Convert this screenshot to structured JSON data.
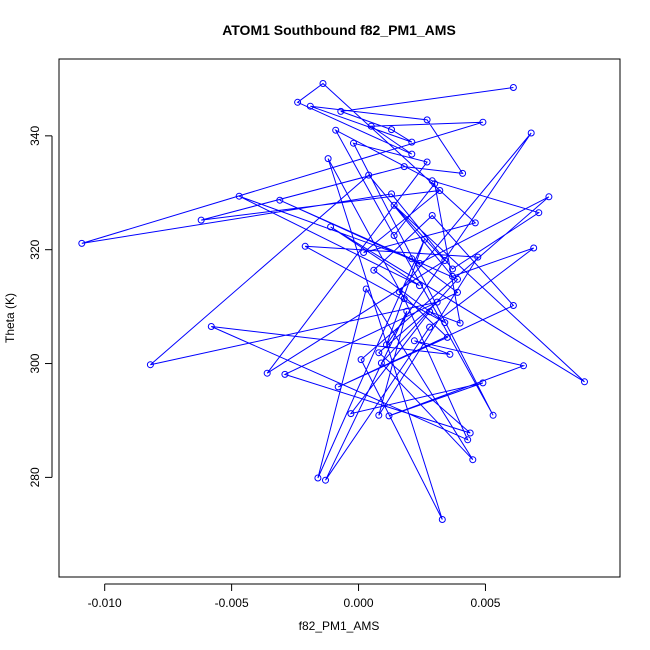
{
  "chart_data": {
    "type": "scatter",
    "title": "ATOM1 Southbound f82_PM1_AMS",
    "xlabel": "f82_PM1_AMS",
    "ylabel": "Theta (K)",
    "xlim": [
      -0.0118,
      0.0103
    ],
    "ylim": [
      262.5,
      353.5
    ],
    "xticks": [
      -0.01,
      -0.005,
      0.0,
      0.005
    ],
    "xtick_labels": [
      "-0.010",
      "-0.005",
      "0.000",
      "0.005"
    ],
    "yticks": [
      280,
      300,
      320,
      340
    ],
    "ytick_labels": [
      "280",
      "300",
      "320",
      "340"
    ],
    "grid": false,
    "legend": "none",
    "color": "#0000ff",
    "connected": true,
    "x": [
      0.0061,
      -0.0007,
      0.0013,
      0.0021,
      -0.0019,
      0.0027,
      0.0041,
      0.0018,
      -0.0062,
      0.0032,
      0.0002,
      0.0046,
      -0.0014,
      -0.0024,
      0.0021,
      0.0005,
      0.0049,
      -0.0109,
      0.0013,
      0.0037,
      0.0071,
      0.0029,
      -0.0009,
      0.0053,
      -0.0002,
      0.0027,
      -0.0036,
      0.0034,
      0.0014,
      0.0089,
      -0.0011,
      0.0024,
      -0.0047,
      0.0021,
      0.0039,
      -0.0029,
      0.0044,
      0.0008,
      0.0031,
      -0.0082,
      0.0004,
      0.0037,
      0.0069,
      0.0028,
      -0.0013,
      0.0019,
      0.0008,
      0.0047,
      -0.0021,
      0.0034,
      0.0006,
      0.0029,
      0.0061,
      -0.0008,
      0.0035,
      0.0016,
      0.0068,
      0.0011,
      0.0026,
      -0.0016,
      0.0003,
      0.0045,
      0.0009,
      0.0039,
      -0.0031,
      0.0024,
      0.0075,
      0.0001,
      0.0033,
      -0.0012,
      0.0018,
      0.0043,
      -0.0058,
      0.0036,
      0.0022,
      0.0065,
      0.0012,
      0.0049,
      -0.0003,
      0.0028,
      0.004,
      0.003,
      0.0014
    ],
    "y": [
      348.5,
      344.3,
      341.1,
      338.9,
      345.2,
      342.8,
      333.4,
      334.6,
      325.2,
      330.4,
      319.5,
      324.7,
      349.2,
      345.9,
      336.8,
      341.7,
      342.4,
      321.1,
      329.8,
      316.6,
      326.5,
      332.1,
      341.0,
      290.9,
      338.7,
      335.4,
      298.3,
      318.1,
      327.8,
      296.8,
      324.0,
      313.7,
      329.4,
      318.4,
      312.5,
      298.1,
      287.8,
      301.9,
      310.8,
      299.8,
      333.1,
      315.3,
      320.3,
      306.4,
      279.5,
      309.2,
      290.9,
      318.7,
      320.6,
      307.2,
      316.4,
      326.0,
      310.2,
      295.9,
      304.6,
      312.6,
      340.5,
      303.3,
      321.8,
      279.9,
      313.1,
      283.1,
      300.1,
      314.8,
      328.7,
      317.6,
      329.3,
      300.7,
      272.6,
      336.0,
      311.4,
      286.6,
      306.5,
      301.6,
      304.0,
      299.6,
      290.8,
      296.6,
      291.2,
      309.1,
      307.1,
      331.6,
      322.5
    ]
  }
}
